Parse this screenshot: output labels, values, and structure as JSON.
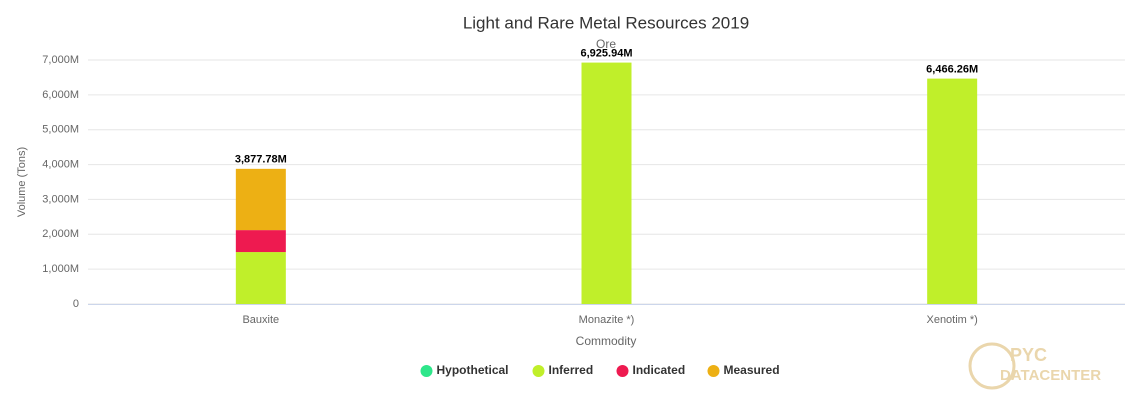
{
  "chart_data": {
    "type": "stacked_bar",
    "title": "Light and Rare Metal Resources 2019",
    "subtitle": "Ore",
    "x_label": "Commodity",
    "y_label": "Volume (Tons)",
    "categories": [
      "Bauxite",
      "Monazite *)",
      "Xenotim *)"
    ],
    "series": [
      {
        "name": "Hypothetical",
        "color": "#2ee68a",
        "values": [
          0,
          0,
          0
        ]
      },
      {
        "name": "Inferred",
        "color": "#c0ef2a",
        "values": [
          1490,
          6925.94,
          6466.26
        ]
      },
      {
        "name": "Indicated",
        "color": "#ee1a50",
        "values": [
          630,
          0,
          0
        ]
      },
      {
        "name": "Measured",
        "color": "#edb014",
        "values": [
          1757.78,
          0,
          0
        ]
      }
    ],
    "stack_labels": [
      "3,877.78M",
      "6,925.94M",
      "6,466.26M"
    ],
    "ylim": [
      0,
      7000
    ],
    "yticks": [
      0,
      {
        "value": 1000,
        "label": "1,000M"
      },
      {
        "value": 2000,
        "label": "2,000M"
      },
      {
        "value": 3000,
        "label": "3,000M"
      },
      {
        "value": 4000,
        "label": "4,000M"
      },
      {
        "value": 5000,
        "label": "5,000M"
      },
      {
        "value": 6000,
        "label": "6,000M"
      },
      {
        "value": 7000,
        "label": "7,000M"
      }
    ],
    "grid": true,
    "legend": "bottom",
    "watermark": [
      "PYC",
      "DATACENTER"
    ]
  }
}
